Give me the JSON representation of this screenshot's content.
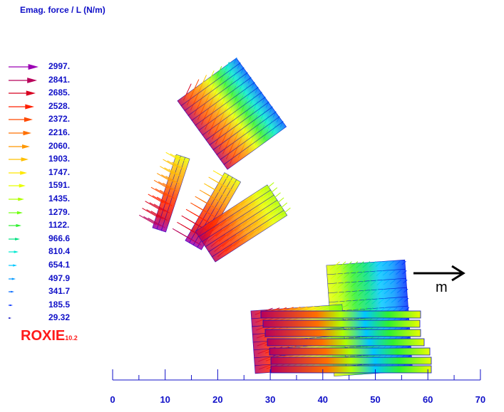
{
  "title": "Emag. force / L (N/m)",
  "legend": [
    {
      "value": "2997.",
      "color": "#9b00b4"
    },
    {
      "value": "2841.",
      "color": "#b8005a"
    },
    {
      "value": "2685.",
      "color": "#d80020"
    },
    {
      "value": "2528.",
      "color": "#ff2000"
    },
    {
      "value": "2372.",
      "color": "#ff4a00"
    },
    {
      "value": "2216.",
      "color": "#ff7000"
    },
    {
      "value": "2060.",
      "color": "#ff9800"
    },
    {
      "value": "1903.",
      "color": "#ffc000"
    },
    {
      "value": "1747.",
      "color": "#ffe800"
    },
    {
      "value": "1591.",
      "color": "#e8ff00"
    },
    {
      "value": "1435.",
      "color": "#b0ff00"
    },
    {
      "value": "1279.",
      "color": "#70ff10"
    },
    {
      "value": "1122.",
      "color": "#30f030"
    },
    {
      "value": "966.6",
      "color": "#00e080"
    },
    {
      "value": "810.4",
      "color": "#00e8d0"
    },
    {
      "value": "654.1",
      "color": "#00c8ff"
    },
    {
      "value": "497.9",
      "color": "#0098ff"
    },
    {
      "value": "341.7",
      "color": "#0068ff"
    },
    {
      "value": "185.5",
      "color": "#0030ff"
    },
    {
      "value": "29.32",
      "color": "#0000c0"
    }
  ],
  "brand": {
    "name": "ROXIE",
    "version": "10.2"
  },
  "axis": {
    "ticks": [
      "0",
      "10",
      "20",
      "30",
      "40",
      "50",
      "60",
      "70"
    ]
  },
  "moment_label": "m",
  "colors": {
    "outline": "#1010c8",
    "text": "#1010c8",
    "brand": "#ff1a1a"
  }
}
